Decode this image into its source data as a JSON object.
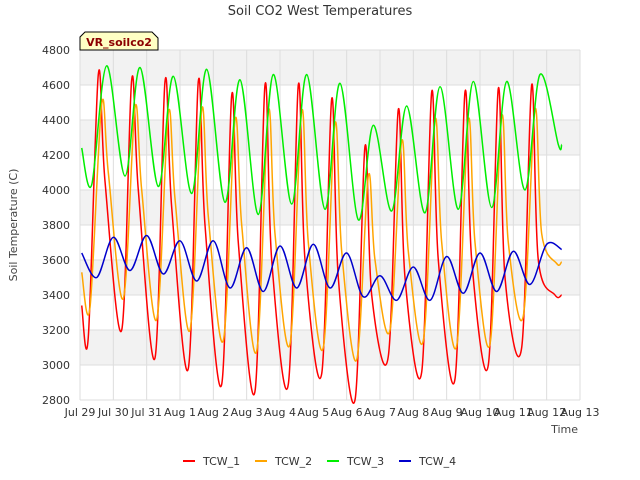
{
  "chart_data": {
    "type": "line",
    "title": "Soil CO2 West Temperatures",
    "xlabel": "Time",
    "ylabel": "Soil Temperature (C)",
    "badge": "VR_soilco2",
    "ylim": [
      2800,
      4800
    ],
    "xlim": [
      0,
      15
    ],
    "y_ticks": [
      2800,
      3000,
      3200,
      3400,
      3600,
      3800,
      4000,
      4200,
      4400,
      4600,
      4800
    ],
    "x_ticks": [
      {
        "value": 0,
        "label": "Jul 29"
      },
      {
        "value": 1,
        "label": "Jul 30"
      },
      {
        "value": 2,
        "label": "Jul 31"
      },
      {
        "value": 3,
        "label": "Aug 1"
      },
      {
        "value": 4,
        "label": "Aug 2"
      },
      {
        "value": 5,
        "label": "Aug 3"
      },
      {
        "value": 6,
        "label": "Aug 4"
      },
      {
        "value": 7,
        "label": "Aug 5"
      },
      {
        "value": 8,
        "label": "Aug 6"
      },
      {
        "value": 9,
        "label": "Aug 7"
      },
      {
        "value": 10,
        "label": "Aug 8"
      },
      {
        "value": 11,
        "label": "Aug 9"
      },
      {
        "value": 12,
        "label": "Aug 10"
      },
      {
        "value": 13,
        "label": "Aug 11"
      },
      {
        "value": 14,
        "label": "Aug 12"
      },
      {
        "value": 15,
        "label": "Aug 13"
      }
    ],
    "grid": true,
    "legend_position": "bottom",
    "series": [
      {
        "name": "TCW_1",
        "color": "#ff0000",
        "x": [
          0.05,
          0.25,
          0.55,
          0.75,
          1.25,
          1.55,
          1.75,
          2.25,
          2.55,
          2.75,
          3.25,
          3.55,
          3.75,
          4.25,
          4.55,
          4.75,
          5.25,
          5.55,
          5.75,
          6.25,
          6.55,
          6.75,
          7.25,
          7.55,
          7.75,
          8.25,
          8.55,
          8.75,
          9.25,
          9.55,
          9.75,
          10.25,
          10.55,
          10.75,
          11.25,
          11.55,
          11.75,
          12.25,
          12.55,
          12.75,
          13.25,
          13.55,
          13.75,
          14.25,
          14.45
        ],
        "y": [
          3340,
          3160,
          4660,
          4050,
          3200,
          4630,
          4000,
          3040,
          4620,
          3900,
          2980,
          4620,
          3800,
          2890,
          4540,
          3700,
          2850,
          4600,
          3600,
          2890,
          4600,
          3600,
          2950,
          4520,
          3500,
          2800,
          4250,
          3400,
          3050,
          4460,
          3500,
          2960,
          4560,
          3600,
          2920,
          4560,
          3600,
          3000,
          4580,
          3500,
          3100,
          4600,
          3600,
          3400,
          3400
        ]
      },
      {
        "name": "TCW_2",
        "color": "#ffa500",
        "x": [
          0.05,
          0.3,
          0.65,
          0.85,
          1.3,
          1.65,
          1.85,
          2.3,
          2.65,
          2.85,
          3.3,
          3.65,
          3.85,
          4.3,
          4.65,
          4.85,
          5.3,
          5.65,
          5.85,
          6.3,
          6.65,
          6.85,
          7.3,
          7.65,
          7.85,
          8.3,
          8.65,
          8.85,
          9.3,
          9.65,
          9.85,
          10.3,
          10.65,
          10.85,
          11.3,
          11.65,
          11.85,
          12.3,
          12.65,
          12.85,
          13.3,
          13.65,
          13.85,
          14.3,
          14.45
        ],
        "y": [
          3530,
          3330,
          4490,
          4100,
          3380,
          4470,
          4000,
          3260,
          4440,
          3950,
          3200,
          4460,
          3850,
          3140,
          4400,
          3800,
          3080,
          4450,
          3750,
          3120,
          4450,
          3700,
          3100,
          4380,
          3650,
          3030,
          4080,
          3600,
          3200,
          4280,
          3650,
          3140,
          4400,
          3700,
          3110,
          4400,
          3700,
          3120,
          4420,
          3700,
          3280,
          4460,
          3750,
          3580,
          3590
        ]
      },
      {
        "name": "TCW_3",
        "color": "#00ee00",
        "x": [
          0.05,
          0.35,
          0.8,
          1.35,
          1.8,
          2.35,
          2.8,
          3.35,
          3.8,
          4.35,
          4.8,
          5.35,
          5.8,
          6.35,
          6.8,
          7.35,
          7.8,
          8.35,
          8.8,
          9.35,
          9.8,
          10.35,
          10.8,
          11.35,
          11.8,
          12.35,
          12.8,
          13.35,
          13.8,
          14.35,
          14.45
        ],
        "y": [
          4240,
          4030,
          4710,
          4080,
          4700,
          4020,
          4650,
          3980,
          4690,
          3930,
          4630,
          3860,
          4660,
          3920,
          4660,
          3890,
          4610,
          3830,
          4370,
          3880,
          4480,
          3870,
          4590,
          3890,
          4620,
          3900,
          4620,
          4000,
          4660,
          4260,
          4260
        ]
      },
      {
        "name": "TCW_4",
        "color": "#0000cc",
        "x": [
          0.05,
          0.5,
          1.0,
          1.5,
          2.0,
          2.5,
          3.0,
          3.5,
          4.0,
          4.5,
          5.0,
          5.5,
          6.0,
          6.5,
          7.0,
          7.5,
          8.0,
          8.5,
          9.0,
          9.5,
          10.0,
          10.5,
          11.0,
          11.5,
          12.0,
          12.5,
          13.0,
          13.5,
          14.0,
          14.45
        ],
        "y": [
          3640,
          3500,
          3730,
          3540,
          3740,
          3520,
          3710,
          3480,
          3710,
          3440,
          3670,
          3420,
          3680,
          3440,
          3690,
          3440,
          3640,
          3390,
          3510,
          3370,
          3560,
          3370,
          3620,
          3410,
          3640,
          3420,
          3650,
          3460,
          3690,
          3660
        ]
      }
    ]
  }
}
